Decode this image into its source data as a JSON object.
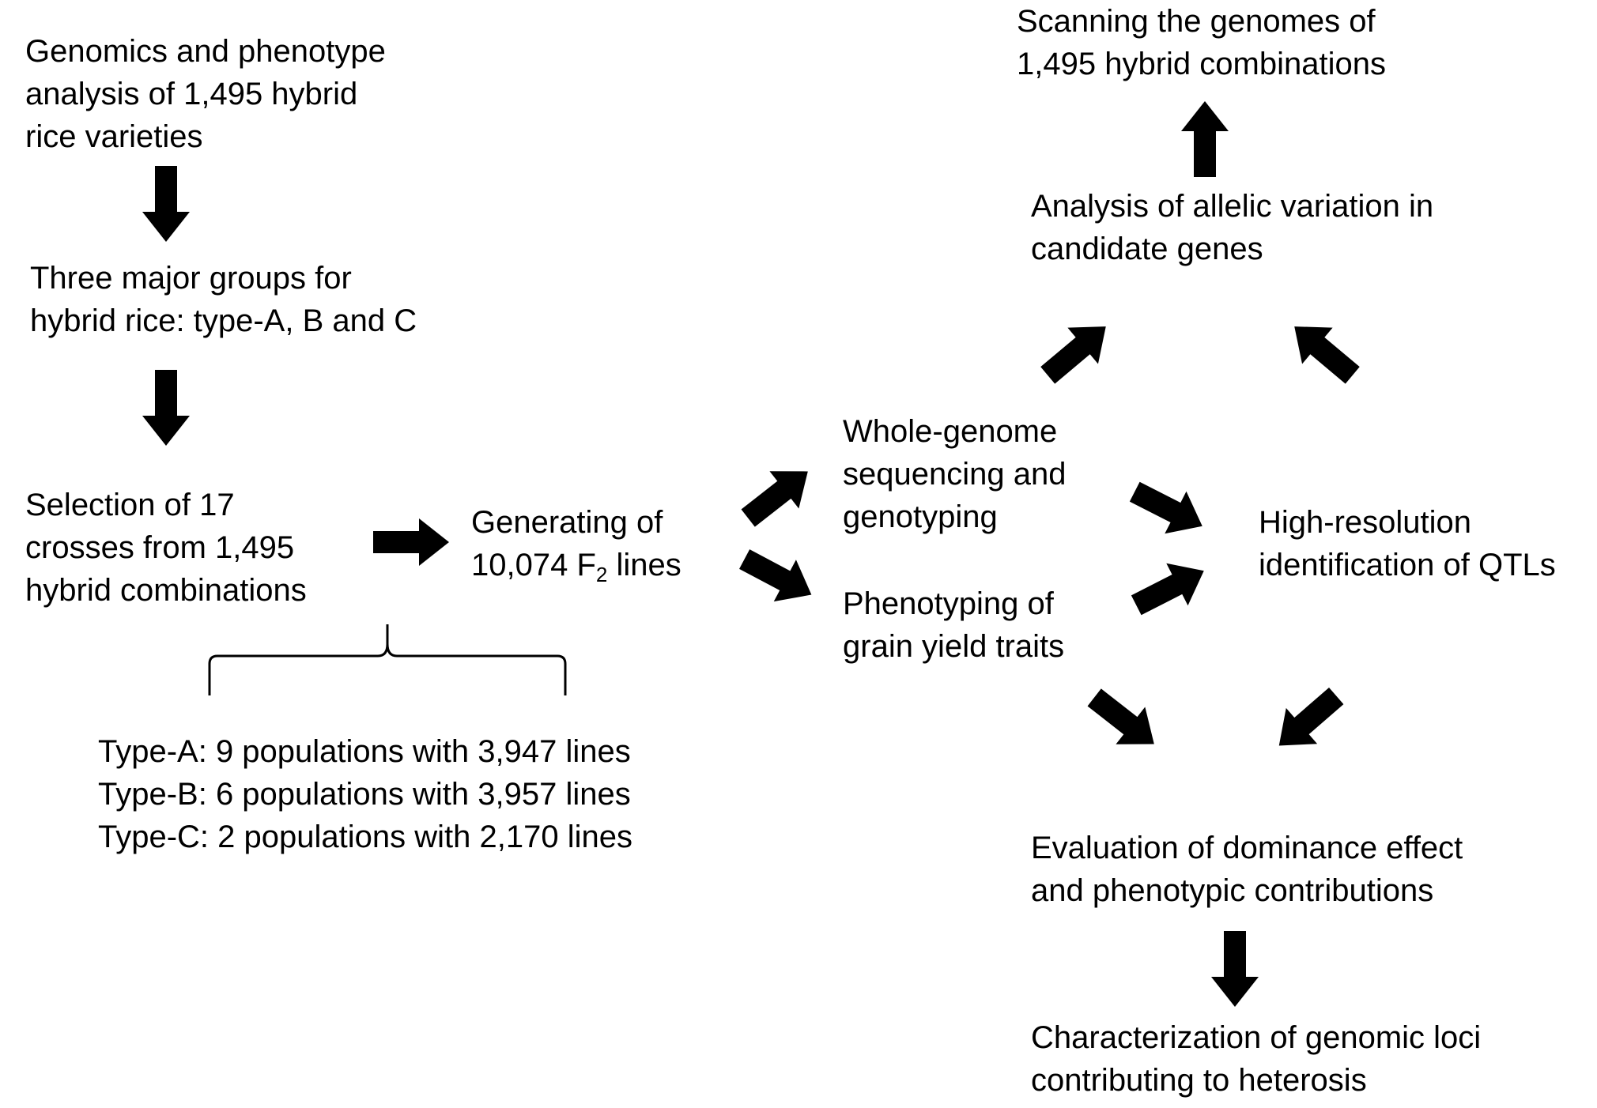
{
  "nodes": {
    "genomics": {
      "lines": [
        "Genomics and phenotype",
        "analysis of 1,495 hybrid",
        "rice varieties"
      ]
    },
    "groups": {
      "lines": [
        "Three major groups for",
        "hybrid rice: type-A, B and C"
      ]
    },
    "selection": {
      "lines": [
        "Selection of 17",
        "crosses from 1,495",
        "hybrid combinations"
      ]
    },
    "generating": {
      "line1": "Generating of",
      "line2_pre": "10,074 F",
      "line2_sub": "2",
      "line2_post": " lines"
    },
    "types": {
      "lines": [
        "Type-A: 9 populations with 3,947 lines",
        "Type-B: 6 populations with 3,957 lines",
        "Type-C: 2 populations with 2,170 lines"
      ]
    },
    "wgs": {
      "lines": [
        "Whole-genome",
        "sequencing and",
        "genotyping"
      ]
    },
    "phenotyping": {
      "lines": [
        "Phenotyping of",
        "grain yield traits"
      ]
    },
    "qtl": {
      "lines": [
        "High-resolution",
        "identification of QTLs"
      ]
    },
    "allelic": {
      "lines": [
        "Analysis of allelic variation in",
        "candidate genes"
      ]
    },
    "scanning": {
      "lines": [
        "Scanning the genomes of",
        "1,495 hybrid combinations"
      ]
    },
    "dominance": {
      "lines": [
        "Evaluation of dominance effect",
        "and phenotypic contributions"
      ]
    },
    "loci": {
      "lines": [
        "Characterization of genomic loci",
        "contributing to heterosis"
      ]
    }
  },
  "colors": {
    "text": "#000000",
    "arrow": "#000000",
    "background": "#ffffff"
  }
}
